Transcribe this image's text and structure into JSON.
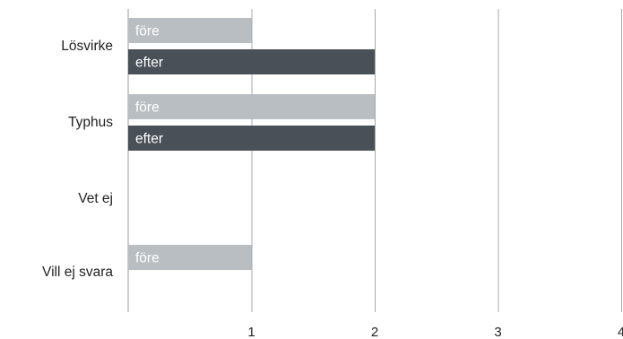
{
  "chart_data": {
    "type": "bar",
    "orientation": "horizontal",
    "categories": [
      "Lösvirke",
      "Typhus",
      "Vet ej",
      "Vill ej svara"
    ],
    "series": [
      {
        "name": "före",
        "values": [
          1,
          2,
          0,
          1
        ],
        "color": "#b9bec3"
      },
      {
        "name": "efter",
        "values": [
          2,
          2,
          0,
          0
        ],
        "color": "#4a5057"
      }
    ],
    "xticks": [
      "1",
      "2",
      "3",
      "4"
    ],
    "xlim": [
      0,
      4
    ],
    "grid": true,
    "legend": "none",
    "title": "",
    "xlabel": "",
    "ylabel": ""
  }
}
